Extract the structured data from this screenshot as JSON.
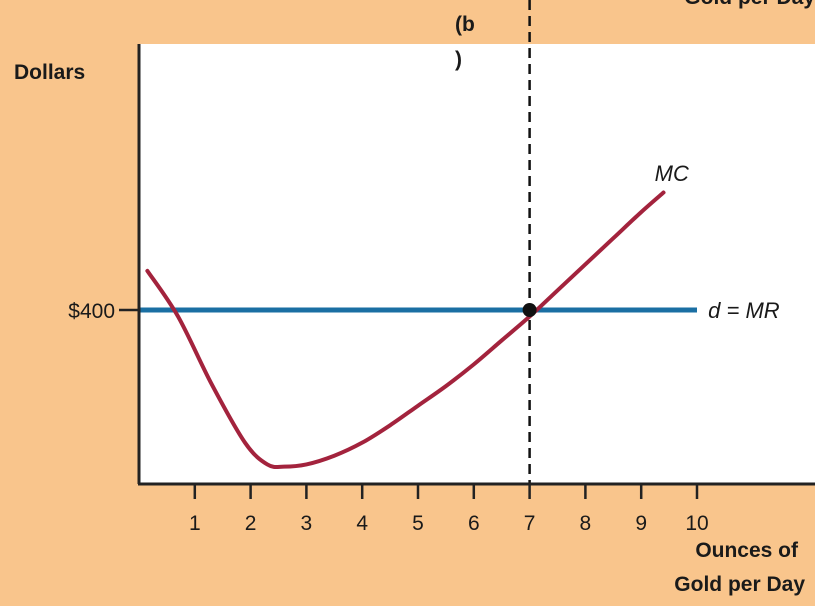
{
  "chart_data": {
    "type": "line",
    "panel_label_line1": "(b",
    "panel_label_line2": ")",
    "top_cut_text": "Gold per Day",
    "ylabel": "Dollars",
    "xlabel_line1": "Ounces of",
    "xlabel_line2": "Gold per Day",
    "x_ticks": [
      1,
      2,
      3,
      4,
      5,
      6,
      7,
      8,
      9,
      10
    ],
    "xlim": [
      0,
      11.3
    ],
    "ylim": [
      0,
      730
    ],
    "y_tick_values": [
      400
    ],
    "y_tick_labels": [
      "$400"
    ],
    "price": 400,
    "profit_max_quantity": 7,
    "series": [
      {
        "name": "MC",
        "color": "#a3233d",
        "x": [
          0.15,
          0.7,
          1.3,
          1.9,
          2.3,
          2.6,
          3.0,
          3.5,
          4.0,
          4.5,
          5.0,
          5.5,
          6.0,
          6.5,
          7.0,
          7.5,
          8.0,
          8.5,
          9.0,
          9.4
        ],
        "y": [
          490,
          385,
          230,
          95,
          45,
          40,
          45,
          65,
          95,
          135,
          180,
          225,
          275,
          330,
          385,
          445,
          505,
          565,
          625,
          670
        ]
      },
      {
        "name": "d = MR",
        "color": "#1a6fa3",
        "x": [
          0,
          10.0
        ],
        "y": [
          400,
          400
        ]
      }
    ],
    "annotations": [
      {
        "text": "MC",
        "x": 9.6,
        "y": 770
      },
      {
        "text": "d = MR",
        "x": 10.2,
        "y": 400
      }
    ]
  }
}
